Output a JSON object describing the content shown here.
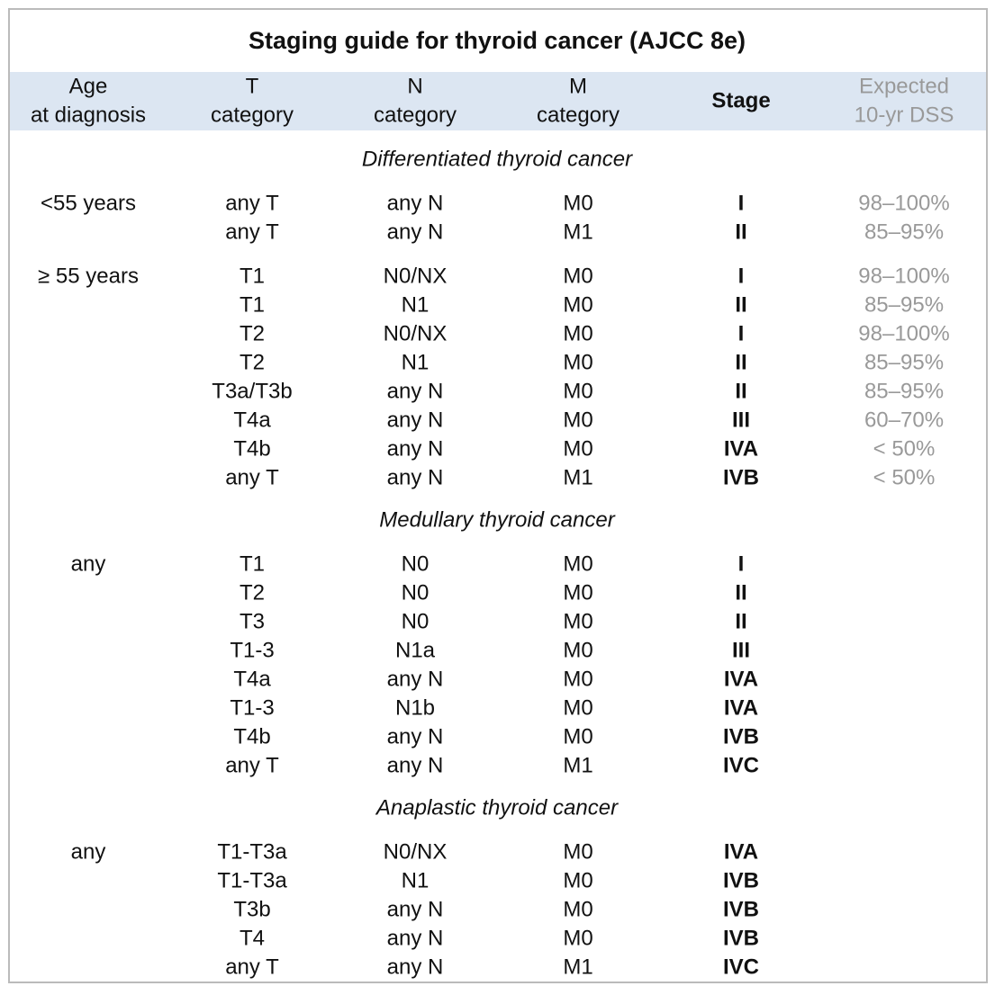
{
  "title": "Staging guide for thyroid cancer (AJCC 8e)",
  "header": {
    "columns": [
      {
        "lines": [
          "Age",
          "at diagnosis"
        ]
      },
      {
        "lines": [
          "T",
          "category"
        ]
      },
      {
        "lines": [
          "N",
          "category"
        ]
      },
      {
        "lines": [
          "M",
          "category"
        ]
      },
      {
        "lines": [
          "Stage"
        ]
      },
      {
        "lines": [
          "Expected",
          "10-yr DSS"
        ]
      }
    ]
  },
  "sections": [
    {
      "heading": "Differentiated thyroid cancer",
      "groups": [
        {
          "age": "<55 years",
          "rows": [
            [
              "any T",
              "any N",
              "M0",
              "I",
              "98–100%"
            ],
            [
              "any T",
              "any N",
              "M1",
              "II",
              "85–95%"
            ]
          ]
        },
        {
          "age": "≥ 55 years",
          "rows": [
            [
              "T1",
              "N0/NX",
              "M0",
              "I",
              "98–100%"
            ],
            [
              "T1",
              "N1",
              "M0",
              "II",
              "85–95%"
            ],
            [
              "T2",
              "N0/NX",
              "M0",
              "I",
              "98–100%"
            ],
            [
              "T2",
              "N1",
              "M0",
              "II",
              "85–95%"
            ],
            [
              "T3a/T3b",
              "any N",
              "M0",
              "II",
              "85–95%"
            ],
            [
              "T4a",
              "any N",
              "M0",
              "III",
              "60–70%"
            ],
            [
              "T4b",
              "any N",
              "M0",
              "IVA",
              "< 50%"
            ],
            [
              "any T",
              "any N",
              "M1",
              "IVB",
              "< 50%"
            ]
          ]
        }
      ]
    },
    {
      "heading": "Medullary thyroid cancer",
      "groups": [
        {
          "age": "any",
          "rows": [
            [
              "T1",
              "N0",
              "M0",
              "I"
            ],
            [
              "T2",
              "N0",
              "M0",
              "II"
            ],
            [
              "T3",
              "N0",
              "M0",
              "II"
            ],
            [
              "T1-3",
              "N1a",
              "M0",
              "III"
            ],
            [
              "T4a",
              "any N",
              "M0",
              "IVA"
            ],
            [
              "T1-3",
              "N1b",
              "M0",
              "IVA"
            ],
            [
              "T4b",
              "any N",
              "M0",
              "IVB"
            ],
            [
              "any T",
              "any N",
              "M1",
              "IVC"
            ]
          ]
        }
      ]
    },
    {
      "heading": "Anaplastic thyroid cancer",
      "groups": [
        {
          "age": "any",
          "rows": [
            [
              "T1-T3a",
              "N0/NX",
              "M0",
              "IVA"
            ],
            [
              "T1-T3a",
              "N1",
              "M0",
              "IVB"
            ],
            [
              "T3b",
              "any N",
              "M0",
              "IVB"
            ],
            [
              "T4",
              "any N",
              "M0",
              "IVB"
            ],
            [
              "any T",
              "any N",
              "M1",
              "IVC"
            ]
          ]
        }
      ]
    }
  ]
}
